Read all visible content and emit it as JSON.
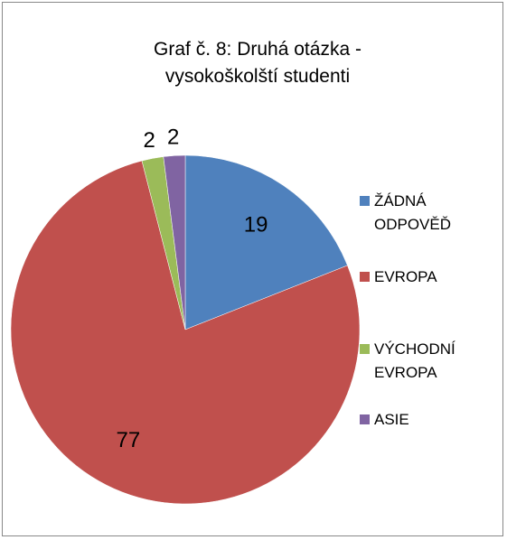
{
  "chart_data": {
    "type": "pie",
    "title": "Graf č. 8: Druhá otázka - vysokoškolští studenti",
    "categories": [
      "ŽÁDNÁ ODPOVĚĎ",
      "EVROPA",
      "VÝCHODNÍ EVROPA",
      "ASIE"
    ],
    "values": [
      19,
      77,
      2,
      2
    ],
    "colors": [
      "#4f81bd",
      "#c0504d",
      "#9bbb59",
      "#8064a2"
    ],
    "legend": "right"
  }
}
